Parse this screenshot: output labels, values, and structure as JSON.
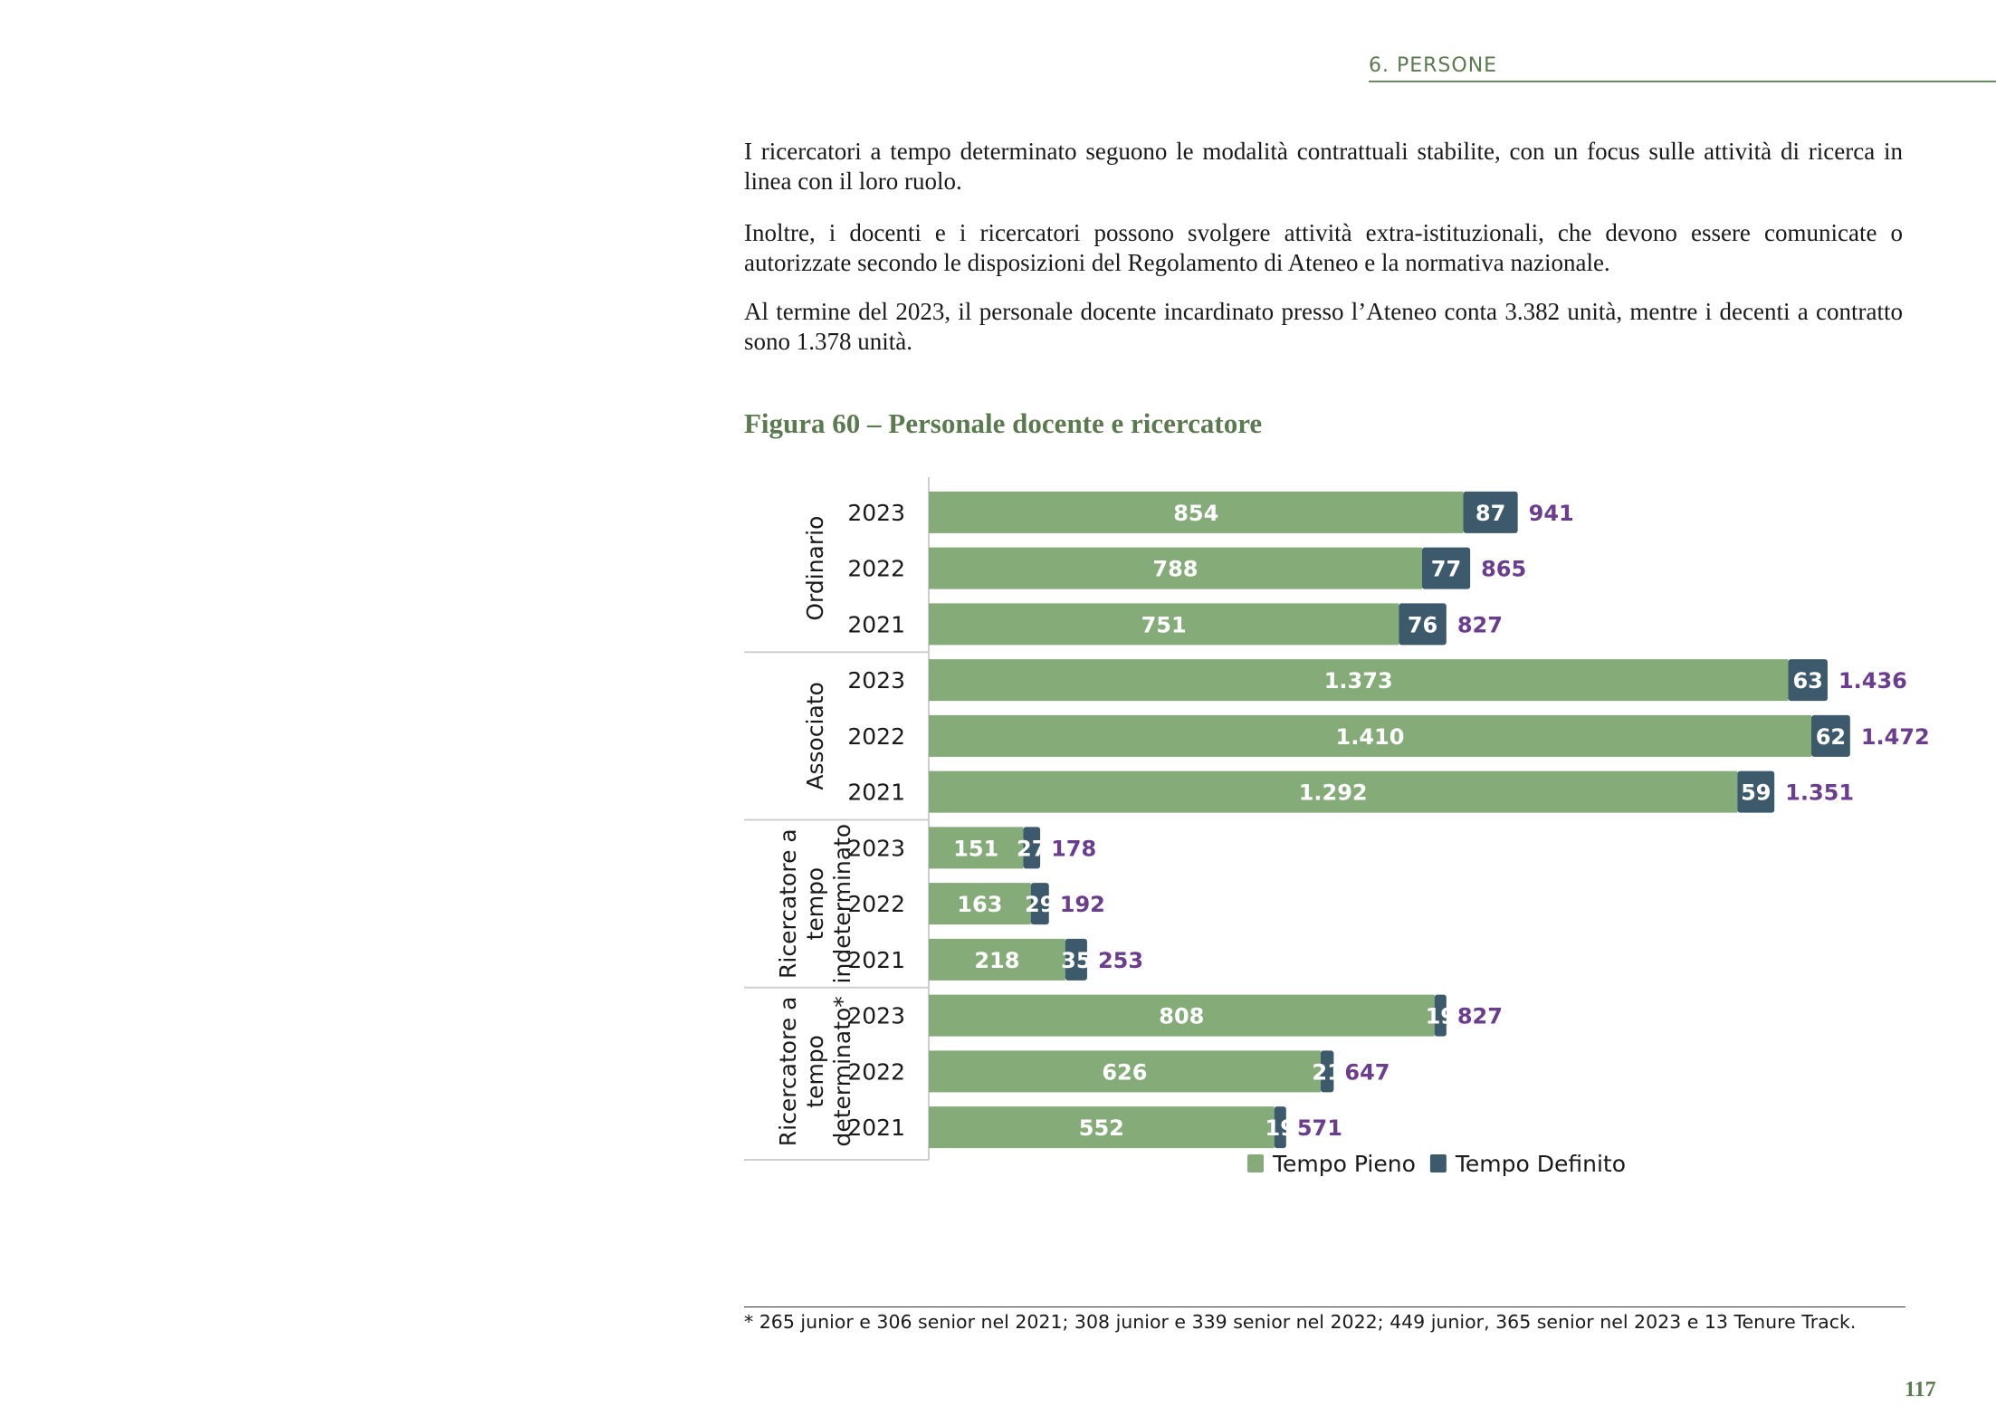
{
  "header": {
    "section": "6. PERSONE"
  },
  "paragraphs": [
    "I ricercatori a tempo determinato seguono le modalità contrattuali stabilite, con un focus sulle attività di ricerca in linea con il loro ruolo.",
    "Inoltre, i docenti e i ricercatori possono svolgere attività extra-istituzionali, che devono essere comunicate o autorizzate secondo le disposizioni del Regolamento di Ateneo e la normativa nazionale.",
    "Al termine del 2023, il personale docente incardinato presso l’Ateneo conta 3.382 unità, mentre i decenti a contratto sono 1.378 unità."
  ],
  "figure_title": "Figura 60 – Personale docente e ricercatore",
  "chart_data": {
    "type": "bar",
    "orientation": "horizontal",
    "stacked": true,
    "groups": [
      {
        "label": [
          "Ordinario"
        ],
        "years": [
          "2023",
          "2022",
          "2021"
        ]
      },
      {
        "label": [
          "Associato"
        ],
        "years": [
          "2023",
          "2022",
          "2021"
        ]
      },
      {
        "label": [
          "Ricercatore a",
          "tempo",
          "indeterminato"
        ],
        "years": [
          "2023",
          "2022",
          "2021"
        ]
      },
      {
        "label": [
          "Ricercatore a",
          "tempo",
          "determinato*"
        ],
        "years": [
          "2023",
          "2022",
          "2021"
        ]
      }
    ],
    "series": [
      {
        "name": "Tempo Pieno",
        "color": "#84ab78",
        "values": [
          854,
          788,
          751,
          1373,
          1410,
          1292,
          151,
          163,
          218,
          808,
          626,
          552
        ],
        "labels": [
          "854",
          "788",
          "751",
          "1.373",
          "1.410",
          "1.292",
          "151",
          "163",
          "218",
          "808",
          "626",
          "552"
        ]
      },
      {
        "name": "Tempo Definito",
        "color": "#3d5a6c",
        "values": [
          87,
          77,
          76,
          63,
          62,
          59,
          27,
          29,
          35,
          19,
          21,
          19
        ],
        "labels": [
          "87",
          "77",
          "76",
          "63",
          "62",
          "59",
          "27",
          "29",
          "35",
          "19",
          "21",
          "19"
        ]
      }
    ],
    "totals": {
      "values": [
        941,
        865,
        827,
        1436,
        1472,
        1351,
        178,
        192,
        253,
        827,
        647,
        571
      ],
      "labels": [
        "941",
        "865",
        "827",
        "1.436",
        "1.472",
        "1.351",
        "178",
        "192",
        "253",
        "827",
        "647",
        "571"
      ],
      "color": "#6b3d8f"
    },
    "xlim": [
      0,
      1640
    ],
    "legend_position": "bottom"
  },
  "footnote": "* 265 junior e 306 senior nel 2021; 308 junior e 339 senior nel 2022; 449 junior, 365 senior nel 2023 e 13 Tenure Track.",
  "page_number": "117"
}
